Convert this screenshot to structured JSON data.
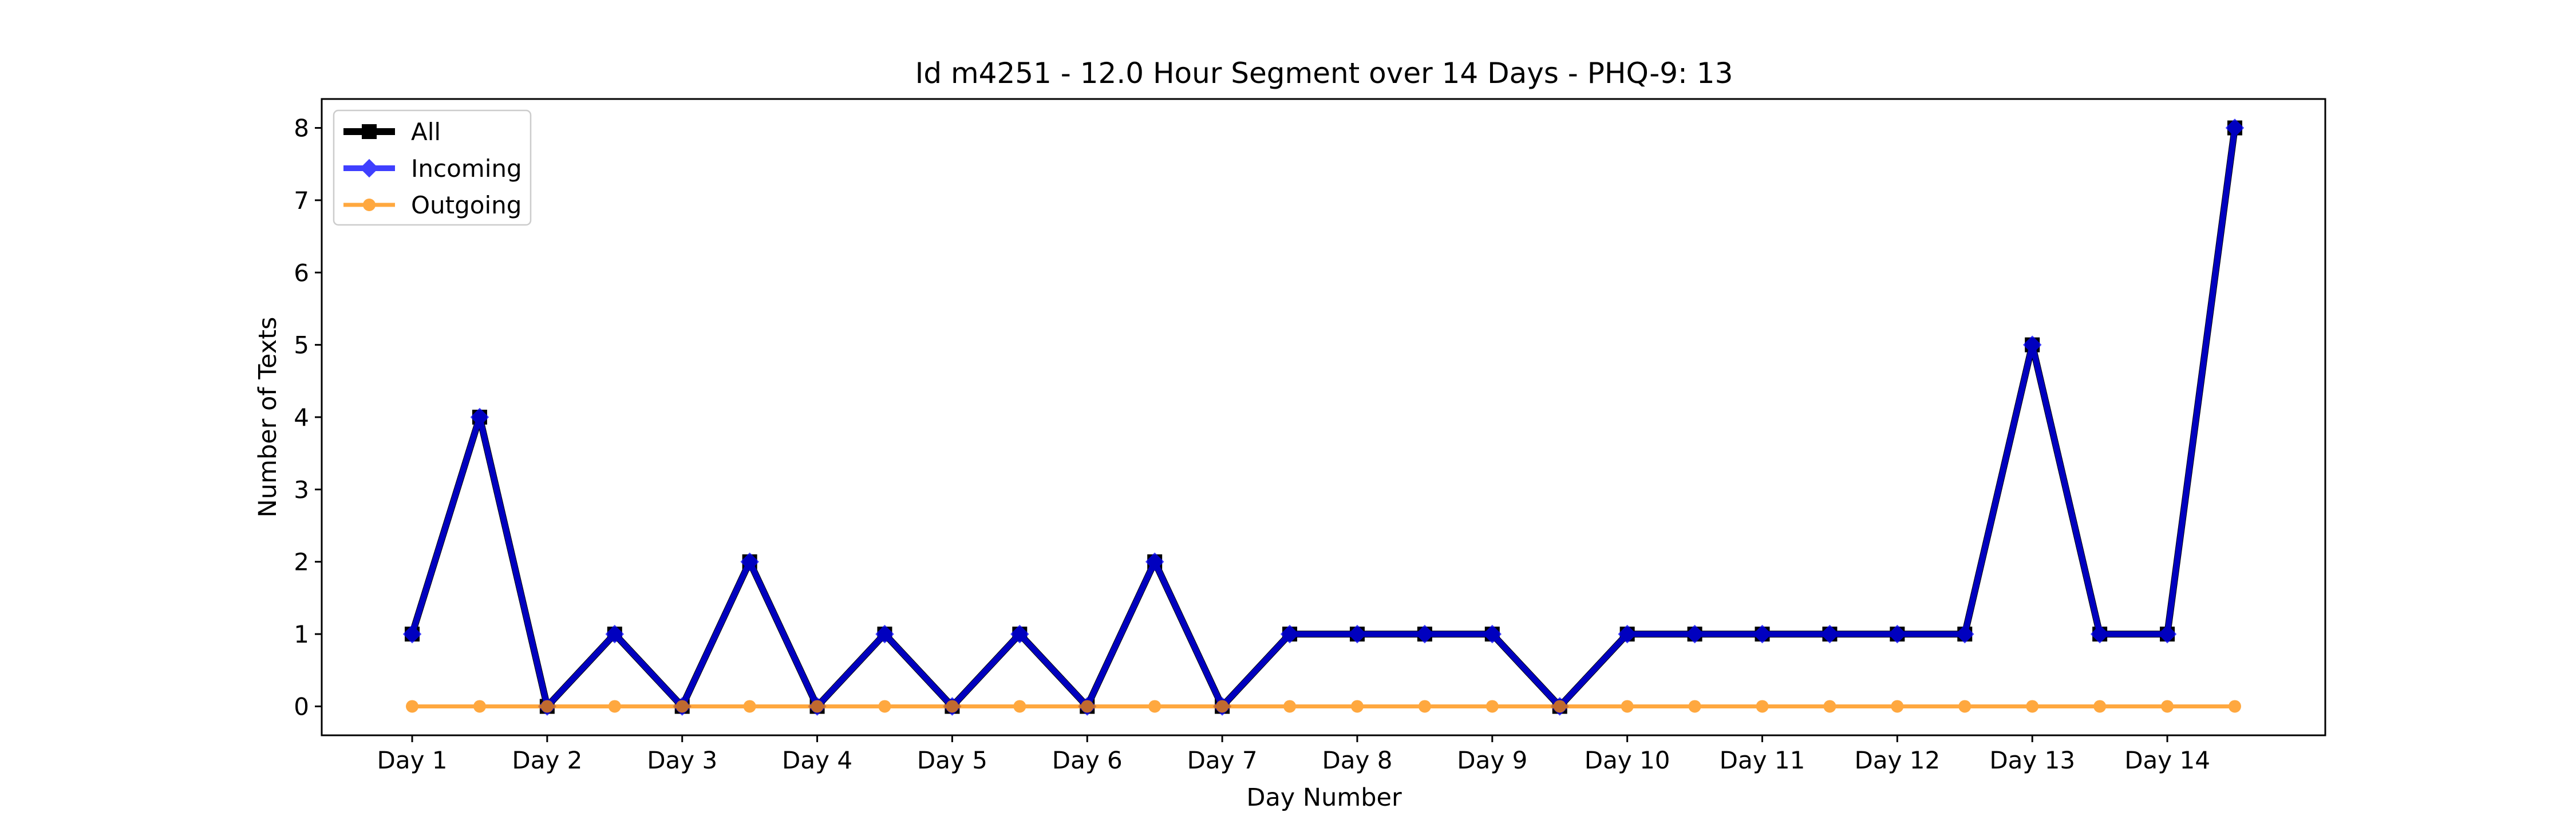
{
  "chart_data": {
    "type": "line",
    "title": "Id m4251 - 12.0 Hour Segment over 14 Days - PHQ-9: 13",
    "xlabel": "Day Number",
    "ylabel": "Number of Texts",
    "x_tick_labels": [
      "Day 1",
      "Day 2",
      "Day 3",
      "Day 4",
      "Day 5",
      "Day 6",
      "Day 7",
      "Day 8",
      "Day 9",
      "Day 10",
      "Day 11",
      "Day 12",
      "Day 13",
      "Day 14"
    ],
    "y_ticks": [
      0,
      1,
      2,
      3,
      4,
      5,
      6,
      7,
      8
    ],
    "x": [
      1,
      1.5,
      2,
      2.5,
      3,
      3.5,
      4,
      4.5,
      5,
      5.5,
      6,
      6.5,
      7,
      7.5,
      8,
      8.5,
      9,
      9.5,
      10,
      10.5,
      11,
      11.5,
      12,
      12.5,
      13,
      13.5,
      14,
      14.5
    ],
    "xlim": [
      0.33,
      15.17
    ],
    "ylim": [
      -0.4,
      8.4
    ],
    "grid": false,
    "legend_position": "upper left",
    "series": [
      {
        "name": "All",
        "color": "#000000",
        "marker": "square",
        "values": [
          1,
          4,
          0,
          1,
          0,
          2,
          0,
          1,
          0,
          1,
          0,
          2,
          0,
          1,
          1,
          1,
          1,
          0,
          1,
          1,
          1,
          1,
          1,
          1,
          5,
          1,
          1,
          8
        ]
      },
      {
        "name": "Incoming",
        "color": "#0000ff",
        "marker": "diamond",
        "values": [
          1,
          4,
          0,
          1,
          0,
          2,
          0,
          1,
          0,
          1,
          0,
          2,
          0,
          1,
          1,
          1,
          1,
          0,
          1,
          1,
          1,
          1,
          1,
          1,
          5,
          1,
          1,
          8
        ]
      },
      {
        "name": "Outgoing",
        "color": "#ff8c00",
        "marker": "circle",
        "values": [
          0,
          0,
          0,
          0,
          0,
          0,
          0,
          0,
          0,
          0,
          0,
          0,
          0,
          0,
          0,
          0,
          0,
          0,
          0,
          0,
          0,
          0,
          0,
          0,
          0,
          0,
          0,
          0
        ]
      }
    ]
  }
}
